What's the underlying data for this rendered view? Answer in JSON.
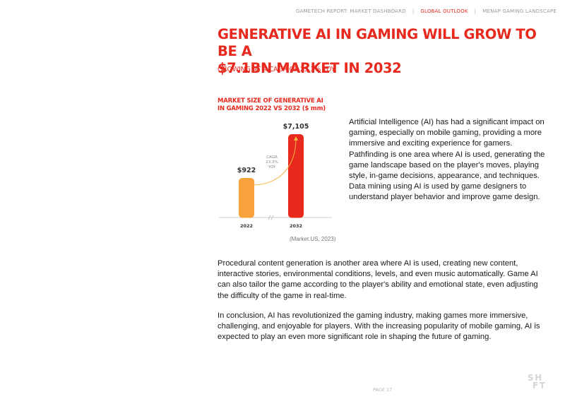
{
  "header": {
    "nav": [
      {
        "label": "GAMETECH REPORT:  MARKET DASHBOARD",
        "active": false
      },
      {
        "label": "GLOBAL OUTLOOK",
        "active": true
      },
      {
        "label": "MENAP GAMING LANDSCAPE",
        "active": false
      }
    ],
    "separator": "|"
  },
  "title": {
    "line1": "GENERATIVE AI IN GAMING WILL GROW TO BE A",
    "line2": "$7.1bn MARKET IN 2032"
  },
  "subtitle": "GROWING AT A CAGR OF 23.3% YOY",
  "chart": {
    "title_line1": "MARKET SIZE OF GENERATIVE AI",
    "title_line2": "IN GAMING 2022 VS 2032 ($ mm)",
    "source": "(Market.US, 2023)",
    "colors": {
      "bar_2022": "#f7a23a",
      "bar_2032": "#e8291e",
      "arrow": "#f7b84a",
      "axis": "#cccccc"
    }
  },
  "chart_data": {
    "type": "bar",
    "categories": [
      "2022",
      "2032"
    ],
    "values": [
      922,
      7105
    ],
    "value_labels": [
      "$922",
      "$7,105"
    ],
    "title": "MARKET SIZE OF GENERATIVE AI IN GAMING 2022 VS 2032 ($ mm)",
    "annotation": {
      "lines": [
        "CAGR",
        "23.3%",
        "YOY"
      ]
    },
    "axis_break": "//",
    "ylim": [
      0,
      7105
    ],
    "grid": false
  },
  "body": {
    "para1": "Artificial Intelligence (AI) has had a significant impact on gaming, especially on mobile gaming, providing a more immersive and exciting experience for gamers. Pathfinding is one area where AI is used, generating the game landscape based on the player's moves, playing style, in-game decisions, appearance, and techniques. Data mining using AI is used by game designers to understand player behavior and improve game design.",
    "para2": "Procedural content generation is another area where AI is used, creating new content, interactive stories, environmental conditions, levels, and even music automatically. Game AI can also tailor the game according to the player's ability and emotional state, even adjusting the difficulty of the game in real-time.",
    "para3": "In conclusion, AI has revolutionized the gaming industry, making games more immersive, challenging, and enjoyable for players. With the increasing popularity of mobile gaming, AI is expected to play an even more significant role in shaping the future of gaming."
  },
  "footer": {
    "page": "PAGE 17",
    "logo_line1": "SH",
    "logo_line2": "FT"
  }
}
